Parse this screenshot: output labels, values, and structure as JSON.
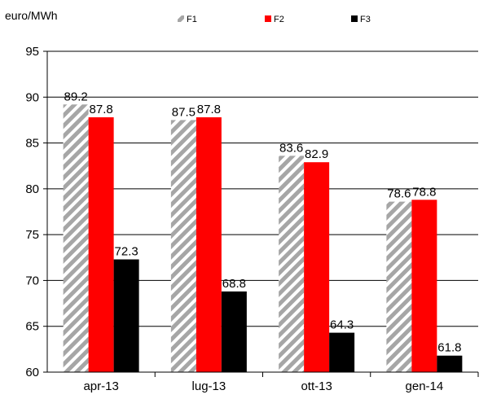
{
  "chart_data": {
    "type": "bar",
    "unit_label": "euro/MWh",
    "categories": [
      "apr-13",
      "lug-13",
      "ott-13",
      "gen-14"
    ],
    "series": [
      {
        "name": "F1",
        "values": [
          89.2,
          87.5,
          83.6,
          78.6
        ],
        "color": "#a6a6a6",
        "pattern": "diagonal-hatch"
      },
      {
        "name": "F2",
        "values": [
          87.8,
          87.8,
          82.9,
          78.8
        ],
        "color": "#ff0000"
      },
      {
        "name": "F3",
        "values": [
          72.3,
          68.8,
          64.3,
          61.8
        ],
        "color": "#000000"
      }
    ],
    "value_labels": [
      [
        "89.2",
        "87.8",
        "72.3"
      ],
      [
        "87.5",
        "87.8",
        "68.8"
      ],
      [
        "83.6",
        "82.9",
        "64.3"
      ],
      [
        "78.6",
        "78.8",
        "61.8"
      ]
    ],
    "ylim": [
      60,
      95
    ],
    "yticks": [
      60,
      65,
      70,
      75,
      80,
      85,
      90,
      95
    ],
    "grid": true,
    "legend_position": "top"
  }
}
